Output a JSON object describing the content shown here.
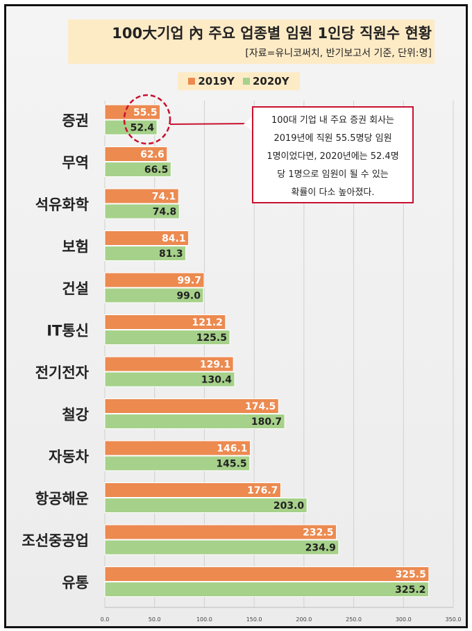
{
  "title": "100大기업 內 주요 업종별 임원 1인당 직원수 현황",
  "subtitle": "[자료=유니코써치, 반기보고서 기준, 단위:명]",
  "callout": {
    "line1": "100대 기업 내 주요 증권 회사는",
    "line2": "2019년에 직원 55.5명당 임원",
    "line3": "1명이었다면, 2020년에는 52.4명",
    "line4": "당 1명으로 임원이 될 수 있는",
    "line5": "확률이 다소 높아졌다."
  },
  "colors": {
    "series_2019": "#ec8a50",
    "series_2020": "#a6d18a",
    "highlight": "#c8102e"
  },
  "chart_data": {
    "type": "bar",
    "orientation": "horizontal",
    "categories": [
      "증권",
      "무역",
      "석유화학",
      "보험",
      "건설",
      "IT통신",
      "전기전자",
      "철강",
      "자동차",
      "항공해운",
      "조선중공업",
      "유통"
    ],
    "series": [
      {
        "name": "2019Y",
        "values": [
          55.5,
          62.6,
          74.1,
          84.1,
          99.7,
          121.2,
          129.1,
          174.5,
          146.1,
          176.7,
          232.5,
          325.5
        ]
      },
      {
        "name": "2020Y",
        "values": [
          52.4,
          66.5,
          74.8,
          81.3,
          99.0,
          125.5,
          130.4,
          180.7,
          145.5,
          203.0,
          234.9,
          325.2
        ]
      }
    ],
    "value_labels_2019": [
      "55.5",
      "62.6",
      "74.1",
      "84.1",
      "99.7",
      "121.2",
      "129.1",
      "174.5",
      "146.1",
      "176.7",
      "232.5",
      "325.5"
    ],
    "value_labels_2020": [
      "52.4",
      "66.5",
      "74.8",
      "81.3",
      "99.0",
      "125.5",
      "130.4",
      "180.7",
      "145.5",
      "203.0",
      "234.9",
      "325.2"
    ],
    "xlim": [
      0,
      350
    ],
    "xticks": [
      "0.0",
      "50.0",
      "100.0",
      "150.0",
      "200.0",
      "250.0",
      "300.0",
      "350.0"
    ],
    "grid": true,
    "legend_position": "top"
  }
}
